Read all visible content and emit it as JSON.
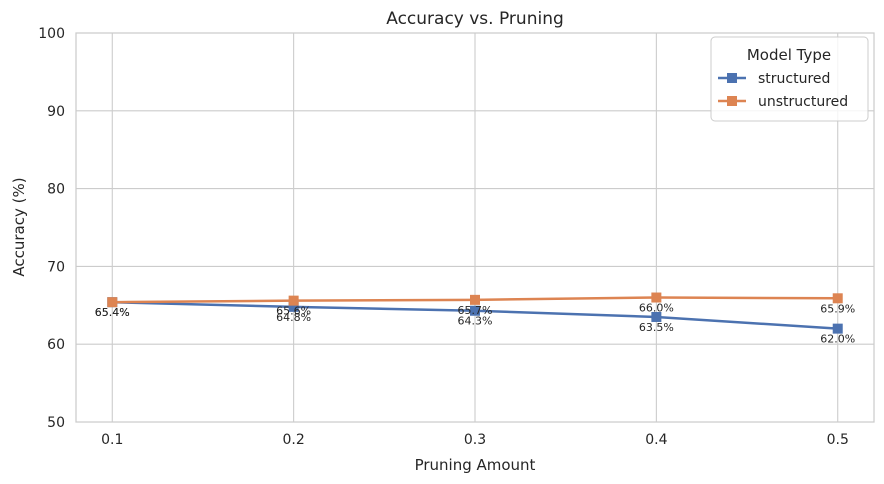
{
  "chart_data": {
    "type": "line",
    "title": "Accuracy vs. Pruning",
    "xlabel": "Pruning Amount",
    "ylabel": "Accuracy (%)",
    "x": [
      0.1,
      0.2,
      0.3,
      0.4,
      0.5
    ],
    "x_tick_labels": [
      "0.1",
      "0.2",
      "0.3",
      "0.4",
      "0.5"
    ],
    "y_ticks": [
      50,
      60,
      70,
      80,
      90,
      100
    ],
    "ylim": [
      50,
      100
    ],
    "xlim": [
      0.08,
      0.52
    ],
    "grid": true,
    "legend": {
      "title": "Model Type",
      "placement": "top-right"
    },
    "series": [
      {
        "name": "structured",
        "color": "#4c72b0",
        "marker": "square",
        "values": [
          65.4,
          64.8,
          64.3,
          63.5,
          62.0
        ],
        "labels": [
          "65.4%",
          "64.8%",
          "64.3%",
          "63.5%",
          "62.0%"
        ]
      },
      {
        "name": "unstructured",
        "color": "#dd8452",
        "marker": "square",
        "values": [
          65.4,
          65.6,
          65.7,
          66.0,
          65.9
        ],
        "labels": [
          "65.4%",
          "65.6%",
          "65.7%",
          "66.0%",
          "65.9%"
        ]
      }
    ]
  }
}
